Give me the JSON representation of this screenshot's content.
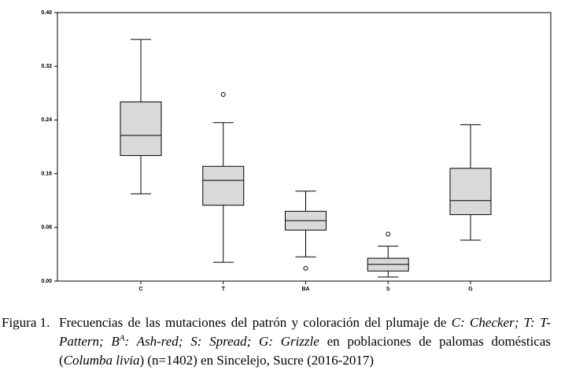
{
  "chart_data": {
    "type": "box",
    "categories": [
      "C",
      "T",
      "BA",
      "S",
      "G"
    ],
    "boxes": [
      {
        "min": 0.13,
        "q1": 0.187,
        "median": 0.217,
        "q3": 0.267,
        "max": 0.36,
        "outliers": []
      },
      {
        "min": 0.028,
        "q1": 0.113,
        "median": 0.15,
        "q3": 0.171,
        "max": 0.236,
        "outliers": [
          0.278
        ]
      },
      {
        "min": 0.036,
        "q1": 0.076,
        "median": 0.09,
        "q3": 0.104,
        "max": 0.134,
        "outliers": [
          0.019
        ]
      },
      {
        "min": 0.006,
        "q1": 0.015,
        "median": 0.025,
        "q3": 0.034,
        "max": 0.052,
        "outliers": [
          0.07
        ]
      },
      {
        "min": 0.061,
        "q1": 0.099,
        "median": 0.12,
        "q3": 0.168,
        "max": 0.233,
        "outliers": []
      }
    ],
    "color": "#d9d9d9",
    "ylim": [
      0,
      0.4
    ],
    "yticks": [
      {
        "value": 0,
        "label": "0.00"
      },
      {
        "value": 0.08,
        "label": "0.08"
      },
      {
        "value": 0.16,
        "label": "0.16"
      },
      {
        "value": 0.24,
        "label": "0.24"
      },
      {
        "value": 0.32,
        "label": "0.32"
      },
      {
        "value": 0.4,
        "label": "0.40"
      }
    ],
    "grid": false,
    "caption": {
      "label": "Figura 1.",
      "parts": [
        "Frecuencias de las mutaciones del patrón y coloración del plumaje de ",
        "C: Checker; T: T-Pattern; B",
        "A",
        ": Ash-red; S: Spread; G: Grizzle",
        " en poblaciones de palomas domésticas (",
        "Columba livia",
        ") (n=1402) en Sincelejo, Sucre (2016-2017)"
      ]
    }
  }
}
